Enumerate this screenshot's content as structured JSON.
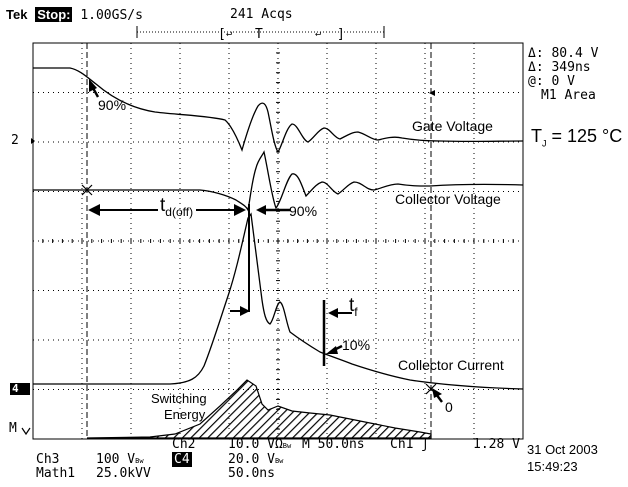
{
  "header": {
    "brand": "Tek",
    "run_state": "Stop:",
    "sample_rate": "1.00GS/s",
    "acquisitions": "241 Acqs"
  },
  "readout": {
    "delta_v": "Δ: 80.4 V",
    "delta_t": "Δ: 349ns",
    "at_v": "@: 0 V",
    "math_label": "M1 Area"
  },
  "markers": {
    "ch2_marker": "2",
    "ch4_marker": "4",
    "math_marker": "M"
  },
  "annotations": {
    "gate_voltage": "Gate Voltage",
    "collector_voltage": "Collector Voltage",
    "collector_current": "Collector Current",
    "tj_prefix": "T",
    "tj_sub": "J",
    "tj_value": "= 125 °C",
    "pct_90_gate": "90%",
    "pct_90_collector": "90%",
    "pct_10": "10%",
    "zero": "0",
    "td_main": "t",
    "td_sub": "d(off)",
    "tf_main": "t",
    "tf_sub": "f",
    "switching": "Switching",
    "energy": "Energy"
  },
  "status": {
    "ch2_label": "Ch2",
    "ch2_scale": "10.0 VΩ",
    "ch2_bw": "Bw",
    "timebase": "M 50.0ns",
    "trigger_ch": "Ch1",
    "trigger_level": "1.28 V",
    "ch3_label": "Ch3",
    "ch3_scale": "100 V",
    "ch3_bw": "Bw",
    "ch4_label": "C4",
    "ch4_scale": "20.0 V",
    "ch4_bw": "Bw",
    "math_label": "Math1",
    "math_scale": "25.0kVV",
    "math_time": "50.0ns",
    "date": "31 Oct 2003",
    "time": "15:49:23"
  }
}
